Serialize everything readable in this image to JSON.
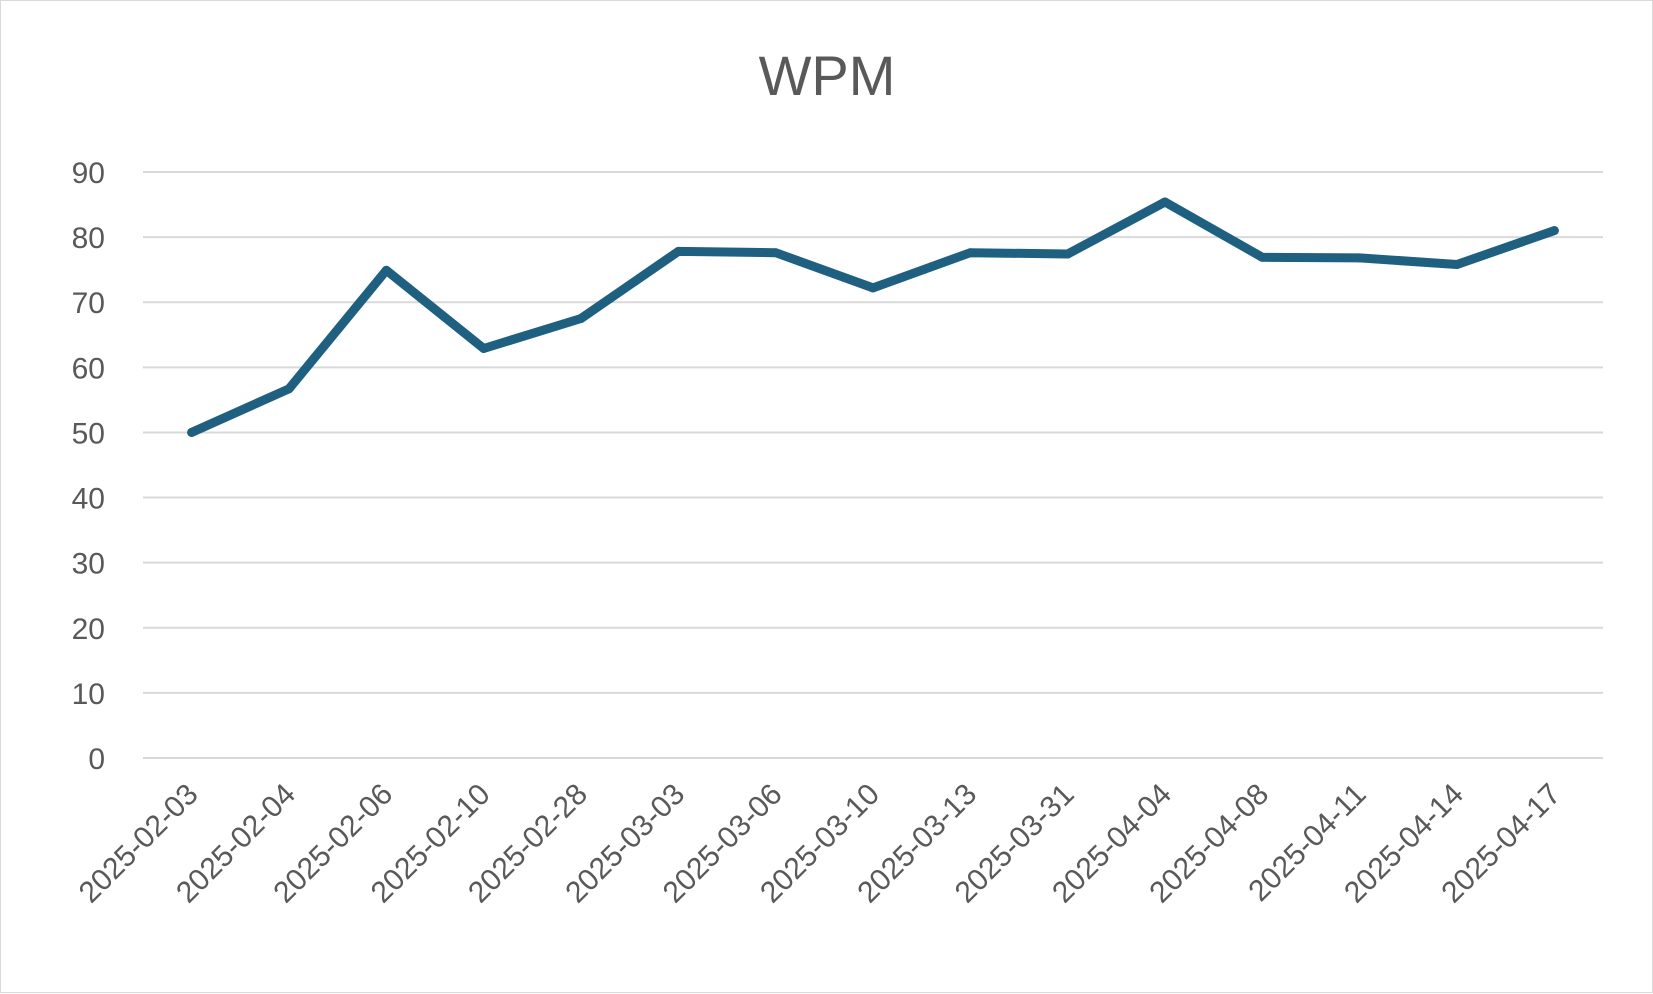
{
  "chart_data": {
    "type": "line",
    "title": "WPM",
    "xlabel": "",
    "ylabel": "",
    "categories": [
      "2025-02-03",
      "2025-02-04",
      "2025-02-06",
      "2025-02-10",
      "2025-02-28",
      "2025-03-03",
      "2025-03-06",
      "2025-03-10",
      "2025-03-13",
      "2025-03-31",
      "2025-04-04",
      "2025-04-08",
      "2025-04-11",
      "2025-04-14",
      "2025-04-17"
    ],
    "series": [
      {
        "color": "#1f5f80",
        "values": [
          50,
          56.7,
          74.9,
          62.9,
          67.5,
          77.8,
          77.6,
          72.2,
          77.6,
          77.4,
          85.4,
          76.9,
          76.8,
          75.8,
          81.0
        ]
      }
    ],
    "ylim": [
      0,
      90
    ],
    "yticks": [
      0,
      10,
      20,
      30,
      40,
      50,
      60,
      70,
      80,
      90
    ],
    "grid": true,
    "legend": "none"
  }
}
